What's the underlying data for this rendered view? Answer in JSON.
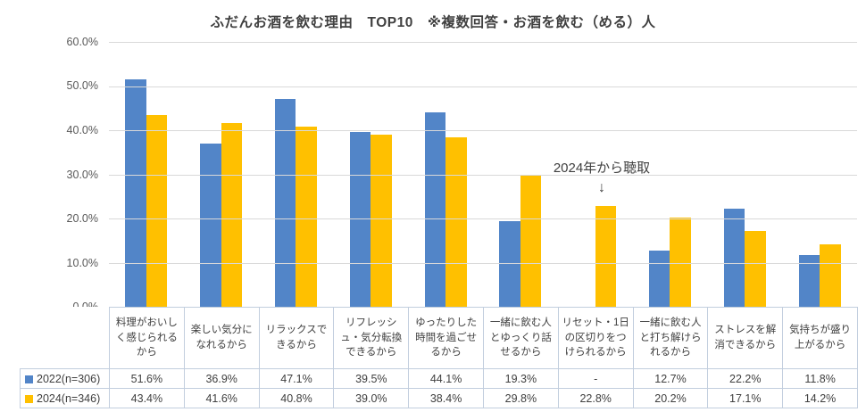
{
  "annotation": {
    "text": "2024年から聴取",
    "arrow": "↓"
  },
  "colors": {
    "series_2022": "#5285C8",
    "series_2024": "#FFC000",
    "grid": "#D9D9D9",
    "table_border": "#C2CEDE",
    "text": "#404040",
    "axis_text": "#595959"
  },
  "chart_data": {
    "type": "bar",
    "title": "ふだんお酒を飲む理由　TOP10　※複数回答・お酒を飲む（める）人",
    "categories": [
      "料理がおいしく感じられるから",
      "楽しい気分になれるから",
      "リラックスできるから",
      "リフレッシュ・気分転換できるから",
      "ゆったりした時間を過ごせるから",
      "一緒に飲む人とゆっくり話せるから",
      "リセット・1日の区切りをつけられるから",
      "一緒に飲む人と打ち解けられるから",
      "ストレスを解消できるから",
      "気持ちが盛り上がるから"
    ],
    "series": [
      {
        "name": "2022(n=306)",
        "color_key": "series_2022",
        "values": [
          51.6,
          36.9,
          47.1,
          39.5,
          44.1,
          19.3,
          null,
          12.7,
          22.2,
          11.8
        ],
        "display": [
          "51.6%",
          "36.9%",
          "47.1%",
          "39.5%",
          "44.1%",
          "19.3%",
          "-",
          "12.7%",
          "22.2%",
          "11.8%"
        ]
      },
      {
        "name": "2024(n=346)",
        "color_key": "series_2024",
        "values": [
          43.4,
          41.6,
          40.8,
          39.0,
          38.4,
          29.8,
          22.8,
          20.2,
          17.1,
          14.2
        ],
        "display": [
          "43.4%",
          "41.6%",
          "40.8%",
          "39.0%",
          "38.4%",
          "29.8%",
          "22.8%",
          "20.2%",
          "17.1%",
          "14.2%"
        ]
      }
    ],
    "ylim": [
      0,
      60
    ],
    "ytick_labels": [
      "60.0%",
      "50.0%",
      "40.0%",
      "30.0%",
      "20.0%",
      "10.0%",
      "0.0%"
    ],
    "grid": true,
    "legend_position": "table-left",
    "annotation_target_category_index": 6
  }
}
